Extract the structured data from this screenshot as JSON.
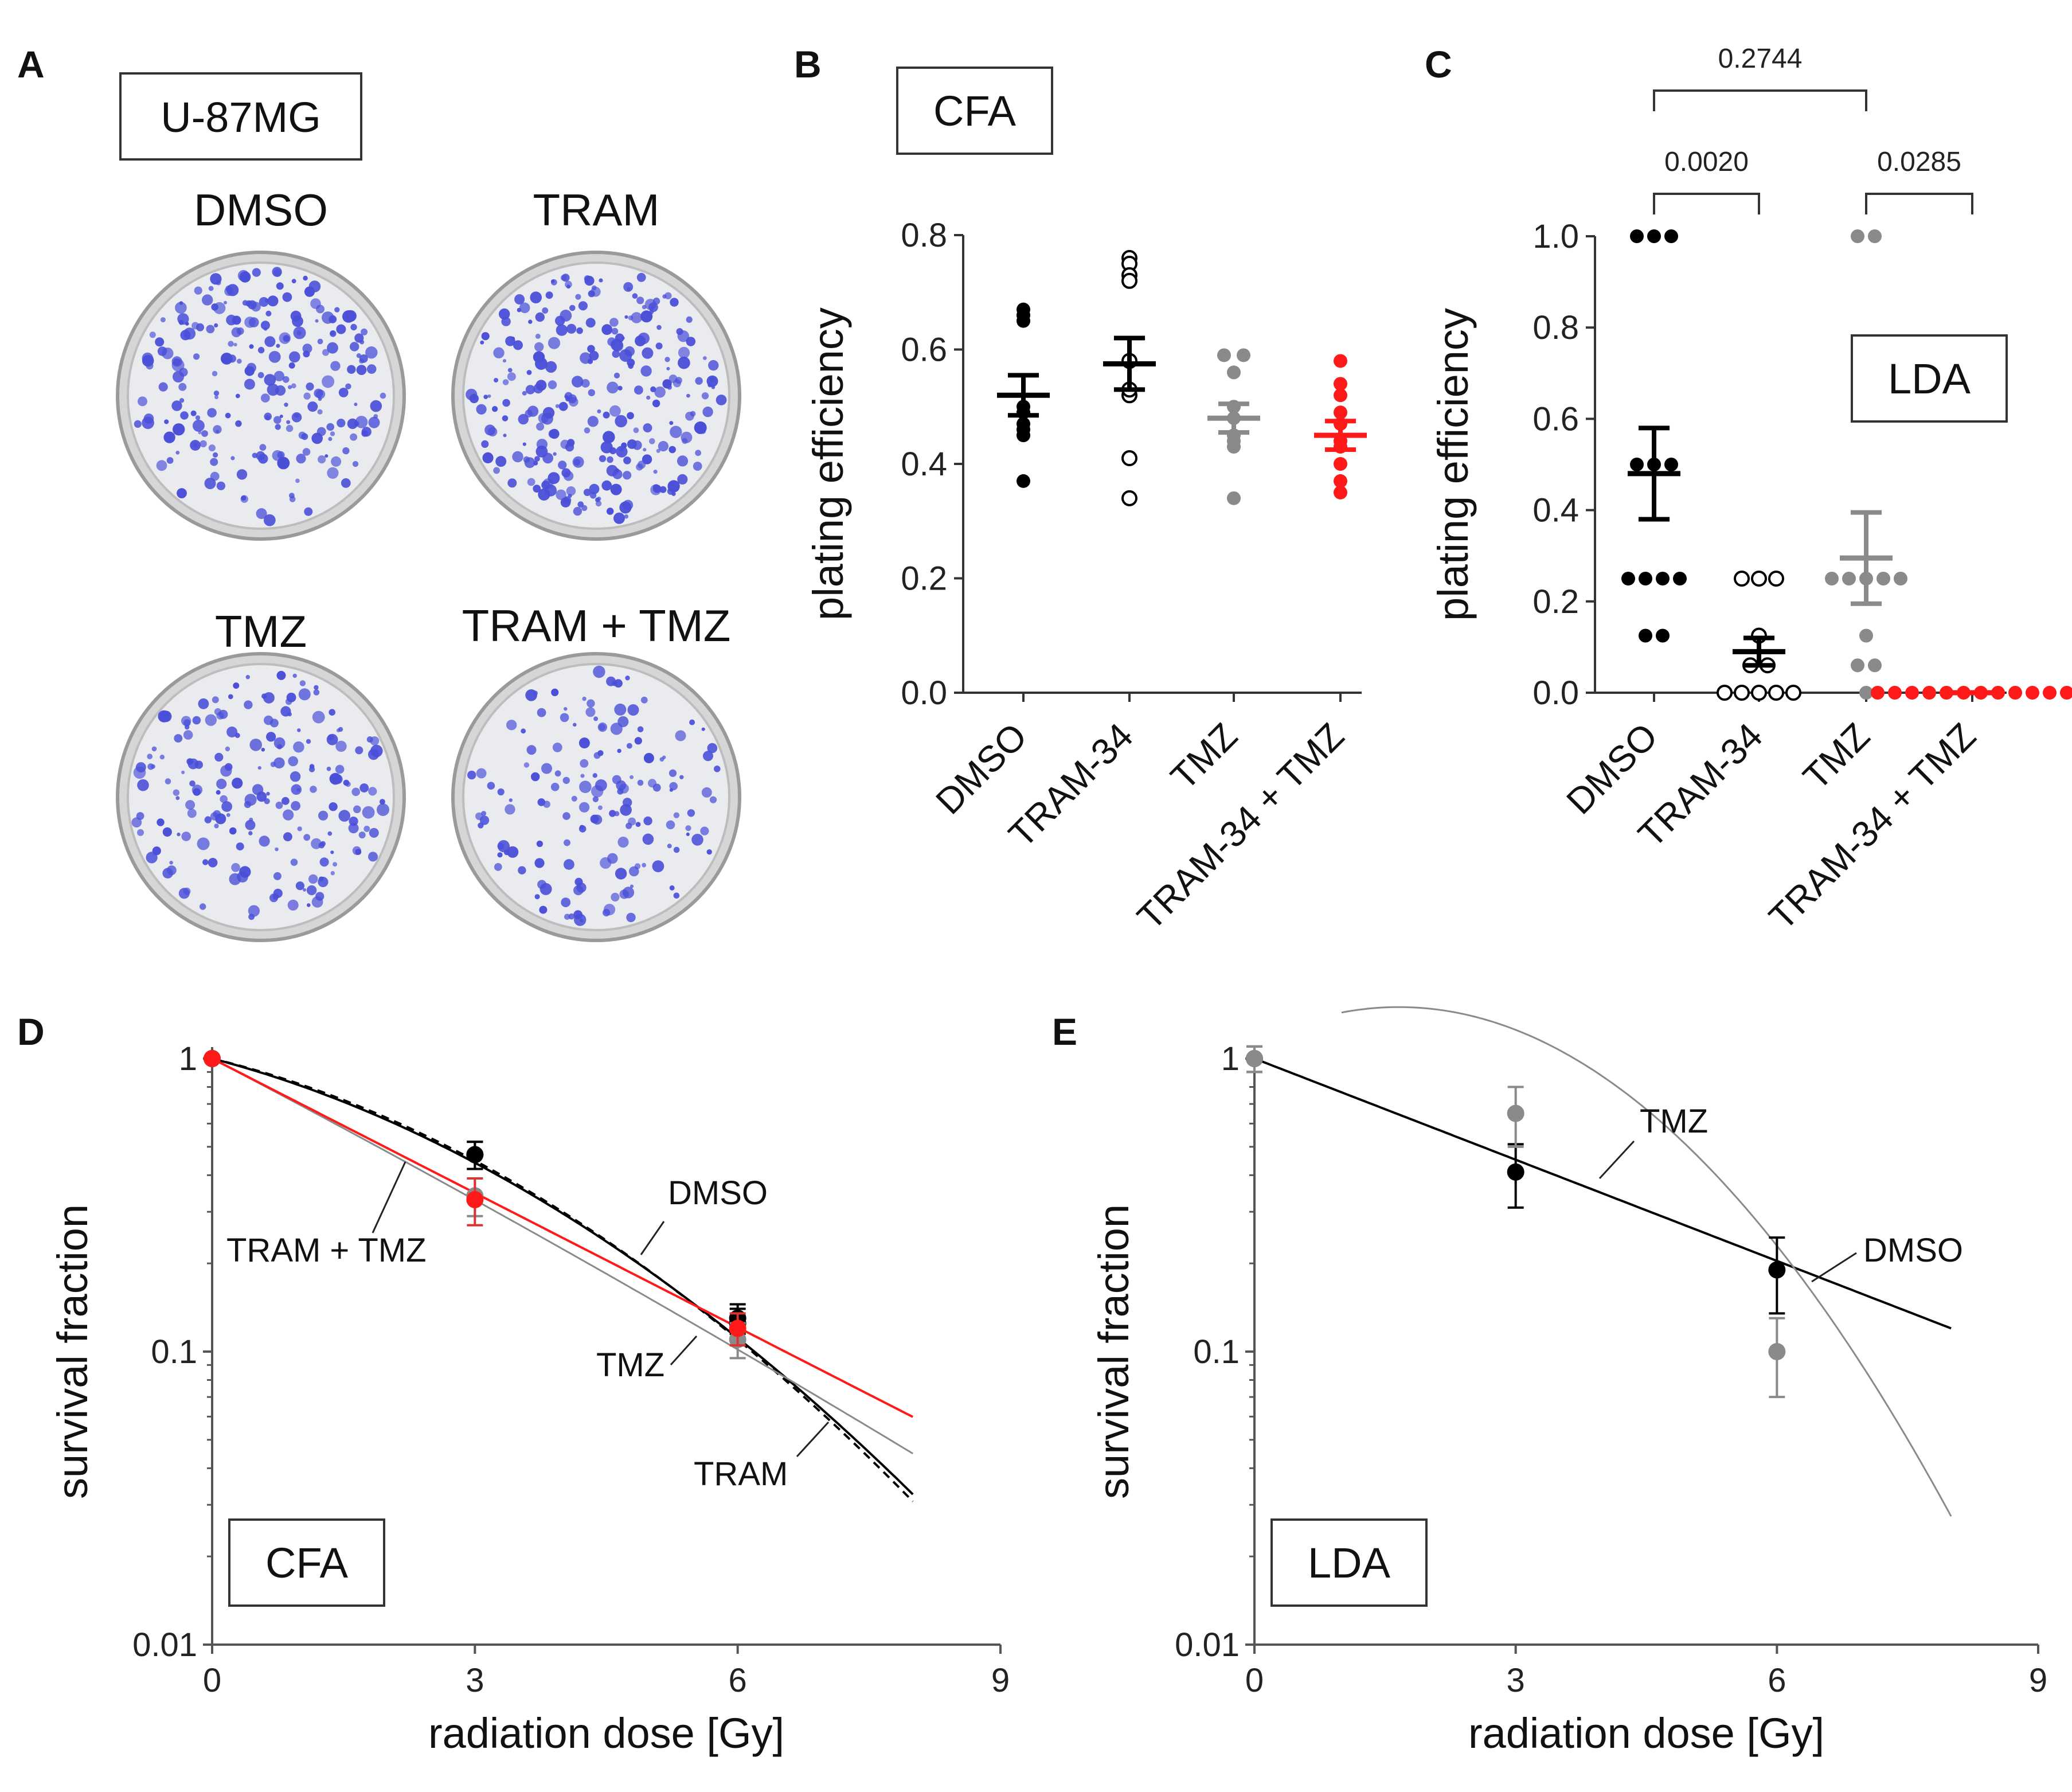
{
  "panel_A": {
    "letter": "A",
    "cell_line": "U-87MG",
    "conditions": [
      "DMSO",
      "TRAM",
      "TMZ",
      "TRAM + TMZ"
    ]
  },
  "colors": {
    "black": "#000000",
    "dark_gray": "#555555",
    "gray": "#8a8a8a",
    "red": "#ff1a1a",
    "colony": "#4a4fd8"
  },
  "chart_data": [
    {
      "panel": "B",
      "type": "scatter",
      "label_box": "CFA",
      "ylabel": "plating efficiency",
      "ylim": [
        0,
        0.8
      ],
      "yticks": [
        "0.0",
        "0.2",
        "0.4",
        "0.6",
        "0.8"
      ],
      "categories": [
        "DMSO",
        "TRAM-34",
        "TMZ",
        "TRAM-34 + TMZ"
      ],
      "series": [
        {
          "name": "DMSO",
          "style": "black-filled",
          "mean": 0.52,
          "sem": 0.035,
          "values": [
            0.67,
            0.65,
            0.66,
            0.49,
            0.5,
            0.47,
            0.46,
            0.45,
            0.37
          ]
        },
        {
          "name": "TRAM-34",
          "style": "open",
          "mean": 0.575,
          "sem": 0.045,
          "values": [
            0.76,
            0.75,
            0.73,
            0.72,
            0.58,
            0.52,
            0.53,
            0.41,
            0.34
          ]
        },
        {
          "name": "TMZ",
          "style": "gray-filled",
          "mean": 0.48,
          "sem": 0.025,
          "values": [
            0.59,
            0.59,
            0.56,
            0.5,
            0.48,
            0.45,
            0.44,
            0.43,
            0.34
          ]
        },
        {
          "name": "TRAM-34 + TMZ",
          "style": "red-filled",
          "mean": 0.45,
          "sem": 0.025,
          "values": [
            0.58,
            0.54,
            0.52,
            0.49,
            0.47,
            0.44,
            0.43,
            0.4,
            0.37,
            0.35
          ]
        }
      ]
    },
    {
      "panel": "C",
      "type": "scatter",
      "label_box": "LDA",
      "ylabel": "plating efficiency",
      "ylim": [
        0,
        1.0
      ],
      "yticks": [
        "0.0",
        "0.2",
        "0.4",
        "0.6",
        "0.8",
        "1.0"
      ],
      "categories": [
        "DMSO",
        "TRAM-34",
        "TMZ",
        "TRAM-34 + TMZ"
      ],
      "series": [
        {
          "name": "DMSO",
          "style": "black-filled",
          "mean": 0.48,
          "sem": 0.1,
          "values": [
            1.0,
            1.0,
            1.0,
            0.5,
            0.5,
            0.5,
            0.25,
            0.25,
            0.25,
            0.25,
            0.125,
            0.125
          ]
        },
        {
          "name": "TRAM-34",
          "style": "open",
          "mean": 0.09,
          "sem": 0.03,
          "values": [
            0.25,
            0.25,
            0.25,
            0.125,
            0.06,
            0.06,
            0.0,
            0.0,
            0.0,
            0.0,
            0.0
          ]
        },
        {
          "name": "TMZ",
          "style": "gray-filled",
          "mean": 0.295,
          "sem": 0.1,
          "values": [
            1.0,
            1.0,
            0.25,
            0.25,
            0.25,
            0.25,
            0.25,
            0.125,
            0.06,
            0.06,
            0.0
          ]
        },
        {
          "name": "TRAM-34 + TMZ",
          "style": "red-filled",
          "mean": 0.0,
          "sem": 0.0,
          "values": [
            0,
            0,
            0,
            0,
            0,
            0,
            0,
            0,
            0,
            0,
            0,
            0
          ]
        }
      ],
      "significance": [
        {
          "from": 0,
          "to": 1,
          "p": "0.0020"
        },
        {
          "from": 2,
          "to": 3,
          "p": "0.0285"
        },
        {
          "from": 0,
          "to": 2,
          "p": "0.2744"
        }
      ]
    },
    {
      "panel": "D",
      "type": "line",
      "label_box": "CFA",
      "xlabel": "radiation dose [Gy]",
      "ylabel": "survival fraction",
      "yscale": "log",
      "xlim": [
        0,
        9
      ],
      "ylim": [
        0.01,
        1
      ],
      "xticks": [
        "0",
        "3",
        "6",
        "9"
      ],
      "yticks": [
        "1",
        "0.1",
        "0.01"
      ],
      "series": [
        {
          "name": "DMSO",
          "label": "DMSO",
          "style": "black-solid",
          "x": [
            0,
            3,
            6
          ],
          "y": [
            1.0,
            0.47,
            0.13
          ],
          "err": [
            0.0,
            0.05,
            0.015
          ],
          "alpha": 0.18,
          "beta": 0.031
        },
        {
          "name": "TRAM",
          "label": "TRAM",
          "style": "black-dashed",
          "x": [
            0,
            3,
            6
          ],
          "y": [
            1.0,
            0.47,
            0.125
          ],
          "err": [
            0.0,
            0.05,
            0.015
          ],
          "alpha": 0.167,
          "beta": 0.0335
        },
        {
          "name": "TMZ",
          "label": "TMZ",
          "style": "gray-solid",
          "x": [
            0,
            3,
            6
          ],
          "y": [
            1.0,
            0.34,
            0.11
          ],
          "err": [
            0.0,
            0.05,
            0.015
          ],
          "alpha": 0.36,
          "beta": 0.0035
        },
        {
          "name": "TRAM + TMZ",
          "label": "TRAM + TMZ",
          "style": "red-solid",
          "x": [
            0,
            3,
            6
          ],
          "y": [
            1.0,
            0.33,
            0.12
          ],
          "err": [
            0.0,
            0.06,
            0.015
          ],
          "alpha": 0.352,
          "beta": 0.0
        }
      ]
    },
    {
      "panel": "E",
      "type": "line",
      "label_box": "LDA",
      "xlabel": "radiation dose [Gy]",
      "ylabel": "survival fraction",
      "yscale": "log",
      "xlim": [
        0,
        9
      ],
      "ylim": [
        0.01,
        1
      ],
      "xticks": [
        "0",
        "3",
        "6",
        "9"
      ],
      "yticks": [
        "1",
        "0.1",
        "0.01"
      ],
      "series": [
        {
          "name": "DMSO",
          "label": "DMSO",
          "style": "black-solid",
          "x": [
            0,
            3,
            6
          ],
          "y": [
            1.0,
            0.41,
            0.19
          ],
          "err": [
            0.1,
            0.1,
            0.055
          ],
          "alpha": 0.265,
          "beta": 0.0
        },
        {
          "name": "TMZ",
          "label": "TMZ",
          "style": "gray-solid",
          "x": [
            0,
            3,
            6
          ],
          "y": [
            1.0,
            0.65,
            0.1
          ],
          "err": [
            0.1,
            0.15,
            0.03
          ],
          "alpha": -0.33,
          "beta": 0.0995
        }
      ]
    }
  ]
}
